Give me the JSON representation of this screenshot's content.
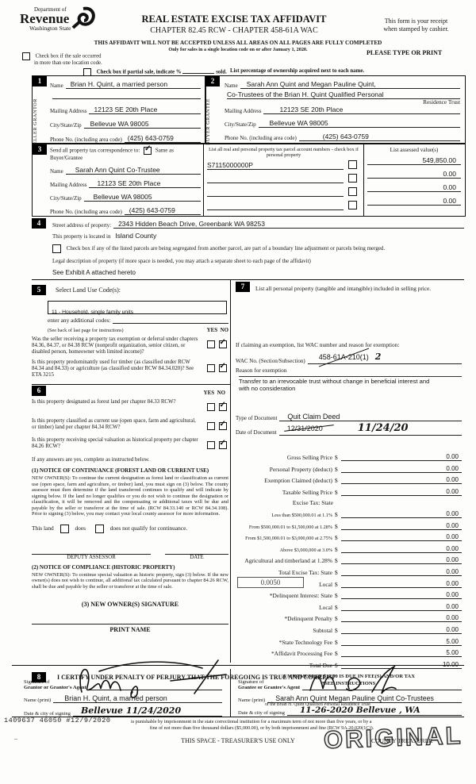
{
  "glyphs": {
    "check": "✓"
  },
  "header": {
    "dept_line1": "Department of",
    "dept_line2": "Revenue",
    "dept_line3": "Washington State",
    "title": "REAL ESTATE EXCISE TAX AFFIDAVIT",
    "subtitle": "CHAPTER 82.45 RCW - CHAPTER 458-61A WAC",
    "notice": "THIS AFFIDAVIT WILL NOT BE ACCEPTED UNLESS ALL AREAS ON ALL PAGES ARE FULLY COMPLETED",
    "only_for": "Only for sales in a single location code on or after January 1, 2020.",
    "receipt_line1": "This form is your receipt",
    "receipt_line2": "when stamped by cashier.",
    "type_or_print": "PLEASE TYPE OR PRINT",
    "multi_location_line1": "Check box if the sale occurred",
    "multi_location_line2": "in more than one location code.",
    "partial_sale_label": "Check box if partial sale, indicate %",
    "sold_label": "sold.",
    "ownership_note": "List percentage of ownership acquired next to each name."
  },
  "seller": {
    "number": "1",
    "side_word1": "SELLER",
    "side_word2": "GRANTOR",
    "name_label": "Name",
    "name": "Brian H. Quint, a married person",
    "address_label": "Mailing Address",
    "address": "12123 SE 20th Place",
    "city_label": "City/State/Zip",
    "city": "Bellevue WA  98005",
    "phone_label": "Phone No. (including area code)",
    "phone": "(425) 643-0759"
  },
  "buyer": {
    "number": "2",
    "side_word1": "BUYER",
    "side_word2": "GRANTEE",
    "name_label": "Name",
    "name_line1": "Sarah Ann Quint and Megan Pauline Quint,",
    "name_line2": "Co-Trustees of the Brian H. Quint Qualified Personal",
    "name_line3": "Residence Trust",
    "address_label": "Mailing Address",
    "address": "12123 SE 20th Place",
    "city_label": "City/State/Zip",
    "city": "Bellevue WA 98005",
    "phone_label": "Phone No. (including area code)",
    "phone": "(425) 643-0759"
  },
  "section3": {
    "number": "3",
    "send_label": "Send all property tax correspondence to:",
    "same_as_label": "Same as Buyer/Grantee",
    "parcel_header": "List all real and personal property tax parcel account numbers - check box if personal property",
    "assessed_header": "List assessed value(s)",
    "name_label": "Name",
    "name": "Sarah Ann Quint Co-Trustee",
    "address_label": "Mailing Address",
    "address": "12123 SE 20th Place",
    "city_label": "City/State/Zip",
    "city": "Bellevue WA  98005",
    "phone_label": "Phone No. (including area code)",
    "phone": "(425) 643-0759",
    "rows": [
      {
        "parcel": "S7115000000P",
        "assessed": "549,850.00"
      },
      {
        "parcel": "",
        "assessed": "0.00"
      },
      {
        "parcel": "",
        "assessed": "0.00"
      },
      {
        "parcel": "",
        "assessed": "0.00"
      }
    ]
  },
  "section4": {
    "number": "4",
    "street_label": "Street address of property:",
    "street": "2343 Hidden Beach Drive, Greenbank WA  98253",
    "located_label": "This property is located in",
    "located": "Island County",
    "segregated_label": "Check box if any of the listed parcels are being segregated from another parcel, are part of a boundary line adjustment or parcels being merged.",
    "legal_label": "Legal description of property (if more space is needed, you may attach a separate sheet to each page of the affidavit)",
    "legal": "See Exhibit A attached hereto"
  },
  "section5": {
    "number": "5",
    "title": "Select Land Use Code(s):",
    "code": "11 - Household, single family units",
    "additional_label": "enter any additional codes:",
    "see_back": "(See back of last page for instructions)",
    "yes": "YES",
    "no": "NO",
    "q1": "Was the seller receiving a property tax exemption or deferral under chapters 84.36, 84.37, or 84.38 RCW (nonprofit organization, senior citizen, or disabled person, homeowner with limited income)?",
    "q2": "Is this property predominantly used for timber (as classified under RCW 84.34 and 84.33) or agriculture (as classified under RCW 84.34.020)? See ETA 3215"
  },
  "section6": {
    "number": "6",
    "yes": "YES",
    "no": "NO",
    "q1": "Is this property designated as forest land per chapter 84.33 RCW?",
    "q2": "Is this property classified as current use (open space, farm and agricultural, or timber) land per chapter 84.34 RCW?",
    "q3": "Is this property receiving special valuation as historical property per chapter 84.26 RCW?",
    "if_yes": "If any answers are yes, complete as instructed below.",
    "notice1_title": "(1) NOTICE OF CONTINUANCE (FOREST LAND OR CURRENT USE)",
    "notice1_body": "NEW OWNER(S): To continue the current designation as forest land or classification as current use (open space, farm and agriculture, or timber) land, you must sign on (3) below. The county assessor must then determine if the land transferred continues to qualify and will indicate by signing below. If the land no longer qualifies or you do not wish to continue the designation or classification, it will be removed and the compensating or additional taxes will be due and payable by the seller or transferor at the time of sale. (RCW 84.33.140 or RCW 84.34.108). Prior to signing (3) below, you may contact your local county assessor for more information.",
    "this_land": "This land",
    "does": "does",
    "does_not": "does not qualify for continuance.",
    "deputy": "DEPUTY ASSESSOR",
    "date": "DATE",
    "notice2_title": "(2) NOTICE OF COMPLIANCE (HISTORIC PROPERTY)",
    "notice2_body": "NEW OWNER(S): To continue special valuation as historic property, sign (3) below. If the new owner(s) does not wish to continue, all additional tax calculated pursuant to chapter 84.26 RCW, shall be due and payable by the seller or transferor at the time of sale.",
    "sig3": "(3) NEW OWNER(S) SIGNATURE",
    "print_name": "PRINT NAME"
  },
  "section7": {
    "number": "7",
    "title": "List all personal property (tangible and intangible) included in selling price.",
    "exemption_intro": "If claiming an exemption, list WAC number and reason for exemption:",
    "wac_label": "WAC No. (Section/Subsection)",
    "wac_typed": "458-61A-210(1)",
    "wac_handwritten": "2",
    "reason_label": "Reason for exemption",
    "reason_line1": "Transfer to an irrevocable trust without change in beneficial interest and",
    "reason_line2": "with no consideration",
    "type_doc_label": "Type of Document",
    "type_doc": "Quit Claim Deed",
    "date_doc_label": "Date of Document",
    "date_doc_typed": "12/31/2020",
    "date_doc_handwritten": "11/24/20",
    "minimum_note": "A MINIMUM OF $10.00 IS DUE IN FEE(S) AND/OR TAX",
    "see_instructions": "*SEE INSTRUCTIONS",
    "tax_rows": [
      {
        "label": "Gross Selling Price",
        "dollar": "$",
        "amount": "0.00"
      },
      {
        "label": "Personal Property (deduct)",
        "dollar": "$",
        "amount": "0.00"
      },
      {
        "label": "Exemption Claimed (deduct)",
        "dollar": "$",
        "amount": "0.00"
      },
      {
        "label": "Taxable Selling Price",
        "dollar": "$",
        "amount": "0.00"
      },
      {
        "label": "Excise Tax: State",
        "dollar": "",
        "amount": null,
        "header": true
      },
      {
        "label": "Less than $500,000.01 at 1.1%",
        "dollar": "$",
        "amount": "0.00",
        "small": true
      },
      {
        "label": "From $500,000.01 to $1,500,000 at 1.28%",
        "dollar": "$",
        "amount": "0.00",
        "small": true
      },
      {
        "label": "From $1,500,000.01 to $3,000,000 at 2.75%",
        "dollar": "$",
        "amount": "0.00",
        "small": true
      },
      {
        "label": "Above $3,000,000 at 3.0%",
        "dollar": "$",
        "amount": "0.00",
        "small": true
      },
      {
        "label": "Agricultural and timberland at 1.28%",
        "dollar": "$",
        "amount": "0.00"
      },
      {
        "label": "Total Excise Tax: State",
        "dollar": "$",
        "amount": "0.00"
      },
      {
        "label": "Local",
        "dollar": "$",
        "amount": "0.00",
        "rate_box": "0.0050"
      },
      {
        "label": "*Delinquent Interest: State",
        "dollar": "$",
        "amount": "0.00"
      },
      {
        "label": "Local",
        "dollar": "$",
        "amount": "0.00"
      },
      {
        "label": "*Delinquent Penalty",
        "dollar": "$",
        "amount": "0.00"
      },
      {
        "label": "Subtotal",
        "dollar": "$",
        "amount": "0.00"
      },
      {
        "label": "*State Technology Fee",
        "dollar": "$",
        "amount": "5.00"
      },
      {
        "label": "*Affidavit Processing Fee",
        "dollar": "$",
        "amount": "5.00"
      },
      {
        "label": "Total Due",
        "dollar": "$",
        "amount": "10.00"
      }
    ]
  },
  "section8": {
    "number": "8",
    "certify": "I CERTIFY UNDER PENALTY OF PERJURY THAT THE FOREGOING IS TRUE AND CORRECT",
    "sig_label1": "Signature of",
    "grantor_sig_label2": "Grantor or Grantor's Agent",
    "grantee_sig_label2": "Grantee or Grantee's Agent",
    "name_print_label": "Name (print)",
    "grantor_name": "Brian H. Quint, a married person",
    "grantee_name": "Sarah Ann Quint Megan Pauline Quint Co-Trustees",
    "grantee_name_sub": "of the Brian H. Quint Qualified Personal Residence Trust",
    "date_city_label": "Date & city of signing",
    "grantor_date_city": "Bellevue   11/24/2020",
    "grantee_date_city": "11-26-2020     Bellevue , WA"
  },
  "footer": {
    "stamp": "1409637  46050  #12/9/2020",
    "perjury_line1": "is punishable by imprisonment in the state correctional institution for a maximum term of not more than five years, or by a",
    "perjury_line2": "fine of not more than five thousand dollars ($5,000.00), or by both imprisonment and fine (RCW 9A.20.020(1C)).",
    "dots": "..",
    "treasurer_space": "THIS SPACE - TREASURER'S USE ONLY",
    "county_treasurer": "COUNTY TREASURER",
    "original_stamp": "ORIGINAL"
  }
}
